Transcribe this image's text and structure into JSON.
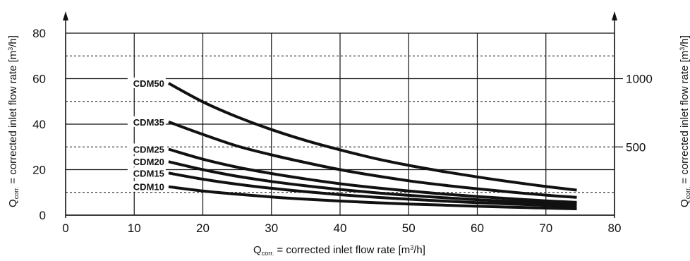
{
  "chart_data": {
    "type": "line",
    "xlabel": {
      "q": "Q",
      "sub": "corr.",
      "rest": " = corrected inlet flow rate [m",
      "sup": "3",
      "end": "/h]"
    },
    "ylabel_left": {
      "q": "Q",
      "sub": "corr.",
      "rest": " = corrected inlet flow rate [m",
      "sup": "3",
      "end": "/h]"
    },
    "ylabel_right": {
      "q": "Q",
      "sub": "corr.",
      "rest": " = corrected inlet flow rate [m",
      "sup": "3",
      "end": "/h]"
    },
    "xlim": [
      0,
      80
    ],
    "ylim": [
      0,
      80
    ],
    "x_ticks": [
      0,
      10,
      20,
      30,
      40,
      50,
      60,
      70,
      80
    ],
    "y_ticks_left": [
      0,
      20,
      40,
      60,
      80
    ],
    "y_ticks_right": [
      {
        "label": "1000",
        "y": 60
      },
      {
        "label": "500",
        "y": 30
      }
    ],
    "grid_solid_x": [
      0,
      10,
      20,
      30,
      40,
      50,
      60,
      70,
      80
    ],
    "grid_solid_y": [
      0,
      20,
      40,
      60,
      80
    ],
    "grid_dashed_y": [
      10,
      30,
      50,
      70
    ],
    "series": [
      {
        "name": "CDM50",
        "x": [
          15,
          20,
          25,
          30,
          35,
          40,
          45,
          50,
          55,
          60,
          65,
          70,
          74.5
        ],
        "y": [
          58,
          49.8,
          43.2,
          37.6,
          32.8,
          28.7,
          25.0,
          21.9,
          19.2,
          16.8,
          14.6,
          12.6,
          11.0
        ]
      },
      {
        "name": "CDM35",
        "x": [
          15,
          20,
          25,
          30,
          35,
          40,
          45,
          50,
          55,
          60,
          65,
          70,
          74.5
        ],
        "y": [
          41,
          35.5,
          30.4,
          26.5,
          23.1,
          20.0,
          17.4,
          15.1,
          13.2,
          11.6,
          10.1,
          8.8,
          7.8
        ]
      },
      {
        "name": "CDM25",
        "x": [
          15,
          20,
          25,
          30,
          35,
          40,
          45,
          50,
          55,
          60,
          65,
          70,
          74.5
        ],
        "y": [
          29,
          24.6,
          21.1,
          18.3,
          15.9,
          13.8,
          12.1,
          10.6,
          9.3,
          8.2,
          7.2,
          6.3,
          5.6
        ]
      },
      {
        "name": "CDM20",
        "x": [
          15,
          20,
          25,
          30,
          35,
          40,
          45,
          50,
          55,
          60,
          65,
          70,
          74.5
        ],
        "y": [
          23.5,
          20.0,
          17.1,
          14.8,
          12.9,
          11.3,
          9.9,
          8.7,
          7.7,
          6.8,
          6.0,
          5.3,
          4.7
        ]
      },
      {
        "name": "CDM15",
        "x": [
          15,
          20,
          25,
          30,
          35,
          40,
          45,
          50,
          55,
          60,
          65,
          70,
          74.5
        ],
        "y": [
          18.5,
          15.8,
          13.6,
          11.8,
          10.3,
          9.0,
          7.9,
          7.0,
          6.2,
          5.5,
          4.9,
          4.3,
          3.9
        ]
      },
      {
        "name": "CDM10",
        "x": [
          15,
          20,
          25,
          30,
          35,
          40,
          45,
          50,
          55,
          60,
          65,
          70,
          74.5
        ],
        "y": [
          12.5,
          10.6,
          9.2,
          8.0,
          7.0,
          6.2,
          5.5,
          4.9,
          4.4,
          3.9,
          3.5,
          3.1,
          2.8
        ]
      }
    ]
  }
}
